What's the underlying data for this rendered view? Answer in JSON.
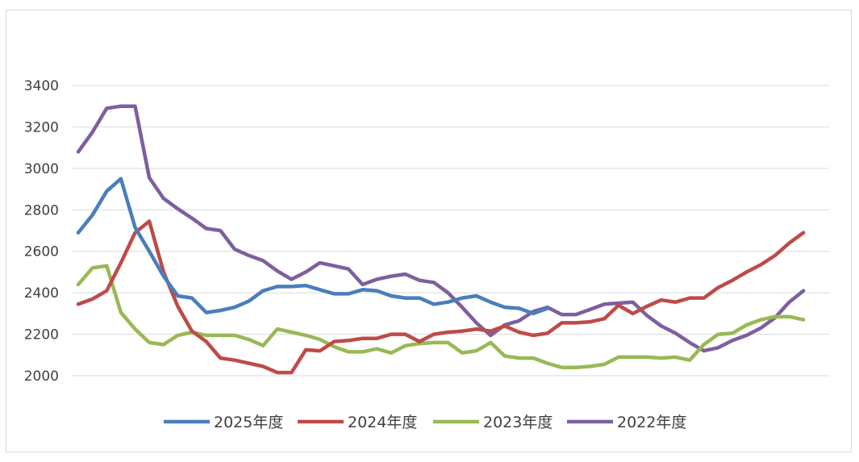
{
  "chart_data": {
    "type": "line",
    "title": "",
    "xlabel": "",
    "ylabel": "",
    "ylim": [
      2000,
      3400
    ],
    "yticks": [
      "3400",
      "3200",
      "3000",
      "2800",
      "2600",
      "2400",
      "2200",
      "2000"
    ],
    "grid": true,
    "legend_position": "bottom",
    "series": [
      {
        "name": "2025年度",
        "color": "#4a7ebb",
        "values": [
          2690,
          2775,
          2890,
          2950,
          2715,
          2600,
          2480,
          2385,
          2375,
          2305,
          2315,
          2330,
          2360,
          2410,
          2430,
          2430,
          2435,
          2415,
          2395,
          2395,
          2415,
          2410,
          2385,
          2375,
          2375,
          2345,
          2355,
          2375,
          2385,
          2355,
          2330,
          2325,
          2300,
          2325
        ]
      },
      {
        "name": "2024年度",
        "color": "#be4b48",
        "values": [
          2345,
          2370,
          2410,
          2545,
          2690,
          2745,
          2500,
          2335,
          2215,
          2165,
          2085,
          2075,
          2060,
          2045,
          2015,
          2015,
          2125,
          2120,
          2165,
          2170,
          2180,
          2180,
          2200,
          2200,
          2165,
          2200,
          2210,
          2215,
          2225,
          2215,
          2240,
          2210,
          2195,
          2205,
          2255,
          2255,
          2260,
          2275,
          2340,
          2300,
          2335,
          2365,
          2355,
          2375,
          2375,
          2425,
          2460,
          2500,
          2535,
          2580,
          2640,
          2690
        ]
      },
      {
        "name": "2023年度",
        "color": "#98b954",
        "values": [
          2440,
          2520,
          2530,
          2305,
          2225,
          2160,
          2150,
          2195,
          2210,
          2195,
          2195,
          2195,
          2175,
          2145,
          2225,
          2210,
          2195,
          2175,
          2140,
          2115,
          2115,
          2130,
          2110,
          2145,
          2155,
          2160,
          2160,
          2110,
          2120,
          2160,
          2095,
          2085,
          2085,
          2060,
          2040,
          2040,
          2045,
          2055,
          2090,
          2090,
          2090,
          2085,
          2090,
          2075,
          2150,
          2200,
          2205,
          2245,
          2270,
          2285,
          2285,
          2270
        ]
      },
      {
        "name": "2022年度",
        "color": "#7d5fa0",
        "values": [
          3080,
          3175,
          3290,
          3300,
          3300,
          2955,
          2855,
          2805,
          2760,
          2710,
          2700,
          2610,
          2580,
          2555,
          2505,
          2465,
          2500,
          2545,
          2530,
          2515,
          2440,
          2465,
          2480,
          2490,
          2460,
          2450,
          2400,
          2330,
          2255,
          2195,
          2245,
          2265,
          2310,
          2330,
          2295,
          2295,
          2320,
          2345,
          2350,
          2355,
          2290,
          2240,
          2205,
          2160,
          2120,
          2135,
          2170,
          2195,
          2230,
          2280,
          2355,
          2410
        ]
      }
    ]
  }
}
